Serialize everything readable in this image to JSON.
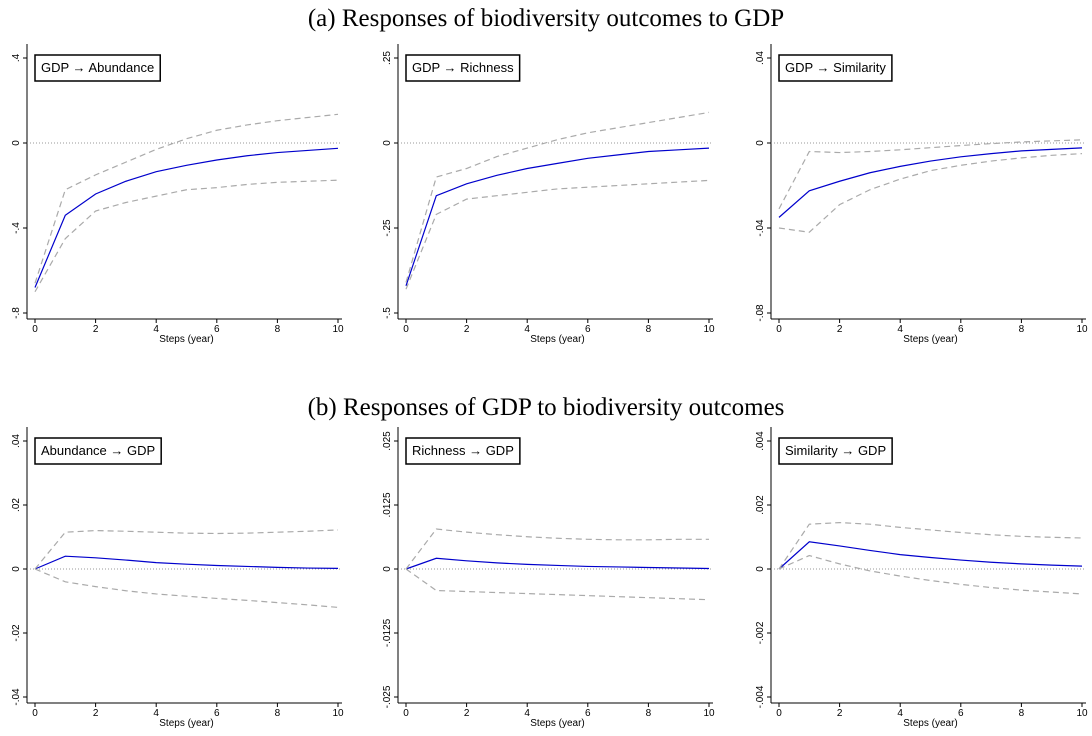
{
  "section_titles": [
    "(a) Responses of biodiversity outcomes to GDP",
    "(b) Responses of GDP to biodiversity outcomes"
  ],
  "chart_data": [
    {
      "type": "line",
      "annotation": "GDP → Abundance",
      "x_label": "Steps (year)",
      "x": [
        0,
        1,
        2,
        3,
        4,
        5,
        6,
        7,
        8,
        9,
        10
      ],
      "xlim": [
        0,
        10
      ],
      "xticks": [
        0,
        2,
        4,
        6,
        8,
        10
      ],
      "ylim": [
        -0.8,
        0.4
      ],
      "yticks": [
        {
          "value": 0.4,
          "label": ".4"
        },
        0,
        {
          "value": -0.4,
          "label": "-.4"
        },
        {
          "value": -0.8,
          "label": "-.8"
        }
      ],
      "zero_line": true,
      "series": [
        {
          "color": "#0000cc",
          "style": "solid",
          "values": [
            -0.68,
            -0.34,
            -0.24,
            -0.18,
            -0.135,
            -0.105,
            -0.08,
            -0.06,
            -0.045,
            -0.035,
            -0.025
          ]
        },
        {
          "color": "#aaaaaa",
          "style": "dashed",
          "values": [
            -0.66,
            -0.22,
            -0.15,
            -0.09,
            -0.03,
            0.02,
            0.06,
            0.085,
            0.105,
            0.12,
            0.135
          ]
        },
        {
          "color": "#aaaaaa",
          "style": "dashed",
          "values": [
            -0.7,
            -0.45,
            -0.32,
            -0.28,
            -0.25,
            -0.22,
            -0.21,
            -0.195,
            -0.185,
            -0.18,
            -0.175
          ]
        }
      ]
    },
    {
      "type": "line",
      "annotation": "GDP → Richness",
      "x_label": "Steps (year)",
      "x": [
        0,
        1,
        2,
        3,
        4,
        5,
        6,
        7,
        8,
        9,
        10
      ],
      "xlim": [
        0,
        10
      ],
      "xticks": [
        0,
        2,
        4,
        6,
        8,
        10
      ],
      "ylim": [
        -0.5,
        0.25
      ],
      "yticks": [
        {
          "value": 0.25,
          "label": ".25"
        },
        0,
        {
          "value": -0.25,
          "label": "-.25"
        },
        {
          "value": -0.5,
          "label": "-.5"
        }
      ],
      "zero_line": true,
      "series": [
        {
          "color": "#0000cc",
          "style": "solid",
          "values": [
            -0.42,
            -0.155,
            -0.12,
            -0.095,
            -0.075,
            -0.06,
            -0.045,
            -0.035,
            -0.025,
            -0.02,
            -0.015
          ]
        },
        {
          "color": "#aaaaaa",
          "style": "dashed",
          "values": [
            -0.41,
            -0.1,
            -0.075,
            -0.04,
            -0.015,
            0.01,
            0.03,
            0.045,
            0.06,
            0.075,
            0.09
          ]
        },
        {
          "color": "#aaaaaa",
          "style": "dashed",
          "values": [
            -0.43,
            -0.21,
            -0.165,
            -0.155,
            -0.145,
            -0.135,
            -0.13,
            -0.125,
            -0.12,
            -0.115,
            -0.11
          ]
        }
      ]
    },
    {
      "type": "line",
      "annotation": "GDP → Similarity",
      "x_label": "Steps (year)",
      "x": [
        0,
        1,
        2,
        3,
        4,
        5,
        6,
        7,
        8,
        9,
        10
      ],
      "xlim": [
        0,
        10
      ],
      "xticks": [
        0,
        2,
        4,
        6,
        8,
        10
      ],
      "ylim": [
        -0.08,
        0.04
      ],
      "yticks": [
        {
          "value": 0.04,
          "label": ".04"
        },
        0,
        {
          "value": -0.04,
          "label": "-.04"
        },
        {
          "value": -0.08,
          "label": "-.08"
        }
      ],
      "zero_line": true,
      "series": [
        {
          "color": "#0000cc",
          "style": "solid",
          "values": [
            -0.035,
            -0.0225,
            -0.018,
            -0.014,
            -0.011,
            -0.0085,
            -0.0065,
            -0.005,
            -0.0037,
            -0.003,
            -0.0023
          ]
        },
        {
          "color": "#aaaaaa",
          "style": "dashed",
          "values": [
            -0.031,
            -0.004,
            -0.0045,
            -0.004,
            -0.0032,
            -0.0022,
            -0.0012,
            -0.0003,
            0.0005,
            0.001,
            0.0015
          ]
        },
        {
          "color": "#aaaaaa",
          "style": "dashed",
          "values": [
            -0.04,
            -0.042,
            -0.029,
            -0.022,
            -0.017,
            -0.013,
            -0.0105,
            -0.0085,
            -0.007,
            -0.0058,
            -0.005
          ]
        }
      ]
    },
    {
      "type": "line",
      "annotation": "Abundance → GDP",
      "x_label": "Steps (year)",
      "x": [
        0,
        1,
        2,
        3,
        4,
        5,
        6,
        7,
        8,
        9,
        10
      ],
      "xlim": [
        0,
        10
      ],
      "xticks": [
        0,
        2,
        4,
        6,
        8,
        10
      ],
      "ylim": [
        -0.04,
        0.04
      ],
      "yticks": [
        {
          "value": 0.04,
          "label": ".04"
        },
        {
          "value": 0.02,
          "label": ".02"
        },
        0,
        {
          "value": -0.02,
          "label": "-.02"
        },
        {
          "value": -0.04,
          "label": "-.04"
        }
      ],
      "zero_line": true,
      "series": [
        {
          "color": "#0000cc",
          "style": "solid",
          "values": [
            0,
            0.004,
            0.0035,
            0.0028,
            0.002,
            0.0015,
            0.0011,
            0.0008,
            0.0005,
            0.0003,
            0.0002
          ]
        },
        {
          "color": "#aaaaaa",
          "style": "dashed",
          "values": [
            0,
            0.0115,
            0.012,
            0.0118,
            0.0115,
            0.0112,
            0.0111,
            0.0112,
            0.0115,
            0.0118,
            0.0122
          ]
        },
        {
          "color": "#aaaaaa",
          "style": "dashed",
          "values": [
            0,
            -0.004,
            -0.0055,
            -0.0068,
            -0.0078,
            -0.0085,
            -0.0092,
            -0.0098,
            -0.0105,
            -0.0112,
            -0.012
          ]
        }
      ]
    },
    {
      "type": "line",
      "annotation": "Richness → GDP",
      "x_label": "Steps (year)",
      "x": [
        0,
        1,
        2,
        3,
        4,
        5,
        6,
        7,
        8,
        9,
        10
      ],
      "xlim": [
        0,
        10
      ],
      "xticks": [
        0,
        2,
        4,
        6,
        8,
        10
      ],
      "ylim": [
        -0.025,
        0.025
      ],
      "yticks": [
        {
          "value": 0.025,
          "label": ".025"
        },
        {
          "value": 0.0125,
          "label": ".0125"
        },
        0,
        {
          "value": -0.0125,
          "label": "-.0125"
        },
        {
          "value": -0.025,
          "label": "-.025"
        }
      ],
      "zero_line": true,
      "series": [
        {
          "color": "#0000cc",
          "style": "solid",
          "values": [
            0,
            0.0021,
            0.0016,
            0.0012,
            0.0009,
            0.0007,
            0.0005,
            0.0004,
            0.0003,
            0.0002,
            0.0001
          ]
        },
        {
          "color": "#aaaaaa",
          "style": "dashed",
          "values": [
            0,
            0.0078,
            0.0072,
            0.0067,
            0.0063,
            0.006,
            0.0058,
            0.0057,
            0.0057,
            0.0058,
            0.0058
          ]
        },
        {
          "color": "#aaaaaa",
          "style": "dashed",
          "values": [
            0,
            -0.0042,
            -0.0044,
            -0.0046,
            -0.0048,
            -0.005,
            -0.0052,
            -0.0054,
            -0.0056,
            -0.0058,
            -0.006
          ]
        }
      ]
    },
    {
      "type": "line",
      "annotation": "Similarity → GDP",
      "x_label": "Steps (year)",
      "x": [
        0,
        1,
        2,
        3,
        4,
        5,
        6,
        7,
        8,
        9,
        10
      ],
      "xlim": [
        0,
        10
      ],
      "xticks": [
        0,
        2,
        4,
        6,
        8,
        10
      ],
      "ylim": [
        -0.004,
        0.004
      ],
      "yticks": [
        {
          "value": 0.004,
          "label": ".004"
        },
        {
          "value": 0.002,
          "label": ".002"
        },
        0,
        {
          "value": -0.002,
          "label": "-.002"
        },
        {
          "value": -0.004,
          "label": "-.004"
        }
      ],
      "zero_line": true,
      "series": [
        {
          "color": "#0000cc",
          "style": "solid",
          "values": [
            0,
            0.00085,
            0.00072,
            0.00058,
            0.00045,
            0.00036,
            0.00028,
            0.00021,
            0.00016,
            0.00012,
            9e-05
          ]
        },
        {
          "color": "#aaaaaa",
          "style": "dashed",
          "values": [
            0,
            0.0014,
            0.00145,
            0.0014,
            0.0013,
            0.00122,
            0.00114,
            0.00107,
            0.00102,
            0.00099,
            0.00097
          ]
        },
        {
          "color": "#aaaaaa",
          "style": "dashed",
          "values": [
            0,
            0.00042,
            0.00016,
            -6e-05,
            -0.00022,
            -0.00036,
            -0.00048,
            -0.00058,
            -0.00066,
            -0.00072,
            -0.00078
          ]
        }
      ]
    }
  ]
}
